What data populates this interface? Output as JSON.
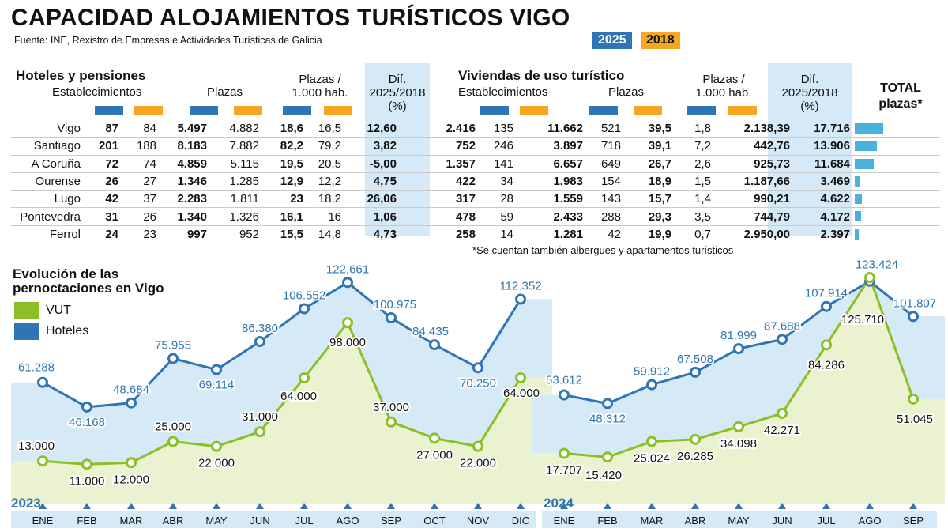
{
  "title": "CAPACIDAD ALOJAMIENTOS TURÍSTICOS VIGO",
  "source": "Fuente: INE, Rexistro de Empresas e Actividades Turísticas de Galicia",
  "legend_years": [
    "2025",
    "2018"
  ],
  "colors": {
    "y2025": "#2f75b5",
    "y2018": "#f5a623",
    "vut": "#8cbf26",
    "hoteles": "#2f75b5",
    "shade": "#d5e9f7"
  },
  "table": {
    "hoteles_title": "Hoteles y pensiones",
    "viviendas_title": "Viviendas de uso turístico",
    "h_establecimientos": "Establecimientos",
    "h_plazas": "Plazas",
    "h_plazas_hab_1": "Plazas /",
    "h_plazas_hab_2": "1.000 hab.",
    "h_dif_1": "Dif.",
    "h_dif_2": "2025/2018",
    "h_dif_3": "(%)",
    "h_total_1": "TOTAL",
    "h_total_2": "plazas*",
    "rows": [
      {
        "city": "Vigo",
        "h_est": [
          "87",
          "84"
        ],
        "h_pl": [
          "5.497",
          "4.882"
        ],
        "h_hab": [
          "18,6",
          "16,5"
        ],
        "h_dif": "12,60",
        "v_est": [
          "2.416",
          "135"
        ],
        "v_pl": [
          "11.662",
          "521"
        ],
        "v_hab": [
          "39,5",
          "1,8"
        ],
        "v_dif": "2.138,39",
        "total": "17.716",
        "total_val": 17716
      },
      {
        "city": "Santiago",
        "h_est": [
          "201",
          "188"
        ],
        "h_pl": [
          "8.183",
          "7.882"
        ],
        "h_hab": [
          "82,2",
          "79,2"
        ],
        "h_dif": "3,82",
        "v_est": [
          "752",
          "246"
        ],
        "v_pl": [
          "3.897",
          "718"
        ],
        "v_hab": [
          "39,1",
          "7,2"
        ],
        "v_dif": "442,76",
        "total": "13.906",
        "total_val": 13906
      },
      {
        "city": "A Coruña",
        "h_est": [
          "72",
          "74"
        ],
        "h_pl": [
          "4.859",
          "5.115"
        ],
        "h_hab": [
          "19,5",
          "20,5"
        ],
        "h_dif": "-5,00",
        "v_est": [
          "1.357",
          "141"
        ],
        "v_pl": [
          "6.657",
          "649"
        ],
        "v_hab": [
          "26,7",
          "2,6"
        ],
        "v_dif": "925,73",
        "total": "11.684",
        "total_val": 11684
      },
      {
        "city": "Ourense",
        "h_est": [
          "26",
          "27"
        ],
        "h_pl": [
          "1.346",
          "1.285"
        ],
        "h_hab": [
          "12,9",
          "12,2"
        ],
        "h_dif": "4,75",
        "v_est": [
          "422",
          "34"
        ],
        "v_pl": [
          "1.983",
          "154"
        ],
        "v_hab": [
          "18,9",
          "1,5"
        ],
        "v_dif": "1.187,66",
        "total": "3.469",
        "total_val": 3469
      },
      {
        "city": "Lugo",
        "h_est": [
          "42",
          "37"
        ],
        "h_pl": [
          "2.283",
          "1.811"
        ],
        "h_hab": [
          "23",
          "18,2"
        ],
        "h_dif": "26,06",
        "v_est": [
          "317",
          "28"
        ],
        "v_pl": [
          "1.559",
          "143"
        ],
        "v_hab": [
          "15,7",
          "1,4"
        ],
        "v_dif": "990,21",
        "total": "4.622",
        "total_val": 4622
      },
      {
        "city": "Pontevedra",
        "h_est": [
          "31",
          "26"
        ],
        "h_pl": [
          "1.340",
          "1.326"
        ],
        "h_hab": [
          "16,1",
          "16"
        ],
        "h_dif": "1,06",
        "v_est": [
          "478",
          "59"
        ],
        "v_pl": [
          "2.433",
          "288"
        ],
        "v_hab": [
          "29,3",
          "3,5"
        ],
        "v_dif": "744,79",
        "total": "4.172",
        "total_val": 4172
      },
      {
        "city": "Ferrol",
        "h_est": [
          "24",
          "23"
        ],
        "h_pl": [
          "997",
          "952"
        ],
        "h_hab": [
          "15,5",
          "14,8"
        ],
        "h_dif": "4,73",
        "v_est": [
          "258",
          "14"
        ],
        "v_pl": [
          "1.281",
          "42"
        ],
        "v_hab": [
          "19,9",
          "0,7"
        ],
        "v_dif": "2.950,00",
        "total": "2.397",
        "total_val": 2397
      }
    ],
    "footnote": "*Se cuentan también albergues y apartamentos turísticos"
  },
  "chart_data": {
    "type": "line",
    "title": "Evolución de las pernoctaciones en Vigo",
    "legend_placement": "top-left",
    "categories": [
      "ENE",
      "FEB",
      "MAR",
      "ABR",
      "MAY",
      "JUN",
      "JUL",
      "AGO",
      "SEP",
      "OCT",
      "NOV",
      "DIC",
      "ENE",
      "FEB",
      "MAR",
      "ABR",
      "MAY",
      "JUN",
      "JUL",
      "AGO",
      "SEP"
    ],
    "year_labels": [
      {
        "label": "2023",
        "start_index": 0
      },
      {
        "label": "2024",
        "start_index": 12
      }
    ],
    "series": [
      {
        "name": "Hoteles",
        "values": [
          61288,
          46168,
          48684,
          75955,
          69114,
          86380,
          106552,
          122661,
          100975,
          84435,
          70250,
          112352,
          53612,
          48312,
          59912,
          67508,
          81999,
          87688,
          107914,
          123424,
          101807
        ],
        "labels": [
          "61.288",
          "46.168",
          "48.684",
          "75.955",
          "69.114",
          "86.380",
          "106.552",
          "122.661",
          "100.975",
          "84.435",
          "70.250",
          "112.352",
          "53.612",
          "48.312",
          "59.912",
          "67.508",
          "81.999",
          "87.688",
          "107.914",
          "123.424",
          "101.807"
        ]
      },
      {
        "name": "VUT",
        "values": [
          13000,
          11000,
          12000,
          25000,
          22000,
          31000,
          64000,
          98000,
          37000,
          27000,
          22000,
          64000,
          17707,
          15420,
          25024,
          26285,
          34098,
          42271,
          84286,
          125710,
          51045
        ],
        "labels": [
          "13.000",
          "11.000",
          "12.000",
          "25.000",
          "22.000",
          "31.000",
          "64.000",
          "98.000",
          "37.000",
          "27.000",
          "22.000",
          "64.000",
          "17.707",
          "15.420",
          "25.024",
          "26.285",
          "34.098",
          "42.271",
          "84.286",
          "125.710",
          "51.045"
        ]
      }
    ]
  }
}
